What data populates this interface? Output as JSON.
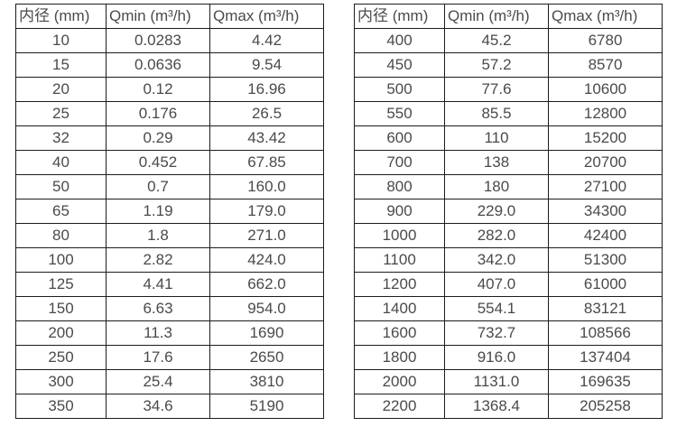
{
  "page": {
    "background_color": "#ffffff",
    "text_color": "#4a4a4a",
    "border_color": "#1c1c1c"
  },
  "tables": [
    {
      "name": "flow-range-table-dn10-350",
      "headers": [
        "内径 (mm)",
        "Qmin (m³/h)",
        "Qmax (m³/h)"
      ],
      "rows": [
        [
          "10",
          "0.0283",
          "4.42"
        ],
        [
          "15",
          "0.0636",
          "9.54"
        ],
        [
          "20",
          "0.12",
          "16.96"
        ],
        [
          "25",
          "0.176",
          "26.5"
        ],
        [
          "32",
          "0.29",
          "43.42"
        ],
        [
          "40",
          "0.452",
          "67.85"
        ],
        [
          "50",
          "0.7",
          "160.0"
        ],
        [
          "65",
          "1.19",
          "179.0"
        ],
        [
          "80",
          "1.8",
          "271.0"
        ],
        [
          "100",
          "2.82",
          "424.0"
        ],
        [
          "125",
          "4.41",
          "662.0"
        ],
        [
          "150",
          "6.63",
          "954.0"
        ],
        [
          "200",
          "11.3",
          "1690"
        ],
        [
          "250",
          "17.6",
          "2650"
        ],
        [
          "300",
          "25.4",
          "3810"
        ],
        [
          "350",
          "34.6",
          "5190"
        ]
      ]
    },
    {
      "name": "flow-range-table-dn400-2200",
      "headers": [
        "内径 (mm)",
        "Qmin (m³/h)",
        "Qmax (m³/h)"
      ],
      "rows": [
        [
          "400",
          "45.2",
          "6780"
        ],
        [
          "450",
          "57.2",
          "8570"
        ],
        [
          "500",
          "77.6",
          "10600"
        ],
        [
          "550",
          "85.5",
          "12800"
        ],
        [
          "600",
          "110",
          "15200"
        ],
        [
          "700",
          "138",
          "20700"
        ],
        [
          "800",
          "180",
          "27100"
        ],
        [
          "900",
          "229.0",
          "34300"
        ],
        [
          "1000",
          "282.0",
          "42400"
        ],
        [
          "1100",
          "342.0",
          "51300"
        ],
        [
          "1200",
          "407.0",
          "61000"
        ],
        [
          "1400",
          "554.1",
          "83121"
        ],
        [
          "1600",
          "732.7",
          "108566"
        ],
        [
          "1800",
          "916.0",
          "137404"
        ],
        [
          "2000",
          "1131.0",
          "169635"
        ],
        [
          "2200",
          "1368.4",
          "205258"
        ]
      ]
    }
  ]
}
